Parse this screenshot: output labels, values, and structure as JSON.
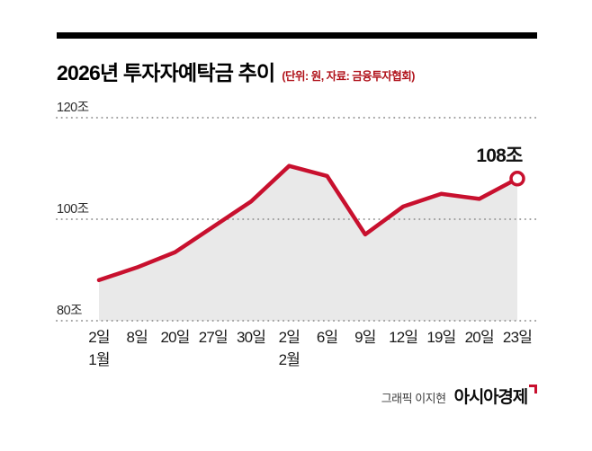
{
  "header": {
    "title": "2026년 투자자예탁금 추이",
    "subtitle": "(단위: 원, 자료: 금융투자협회)"
  },
  "chart_data": {
    "type": "area",
    "title": "2026년 투자자예탁금 추이",
    "unit_note": "단위: 원",
    "source": "자료: 금융투자협회",
    "categories": [
      "2일",
      "8일",
      "20일",
      "27일",
      "30일",
      "2일",
      "6일",
      "9일",
      "12일",
      "19일",
      "20일",
      "23일"
    ],
    "month_markers": [
      {
        "index": 0,
        "label": "1월"
      },
      {
        "index": 5,
        "label": "2월"
      }
    ],
    "values": [
      88,
      90.5,
      93.5,
      98.5,
      103.5,
      110.5,
      108.5,
      97,
      102.5,
      105,
      104,
      108
    ],
    "ylim": [
      80,
      120
    ],
    "yticks": [
      {
        "value": 120,
        "label": "120조"
      },
      {
        "value": 100,
        "label": "100조"
      },
      {
        "value": 80,
        "label": "80조"
      }
    ],
    "annotation": {
      "index": 11,
      "label": "108조"
    },
    "legend": "none",
    "grid": "dotted-horizontal",
    "colors": {
      "line": "#c8102e",
      "area": "#e9e9e9",
      "grid": "#9a9a9a",
      "annotation": "#111111",
      "axis_text": "#1a1a1a"
    }
  },
  "footer": {
    "credit": "그래픽 이지현",
    "brand": "아시아경제"
  }
}
